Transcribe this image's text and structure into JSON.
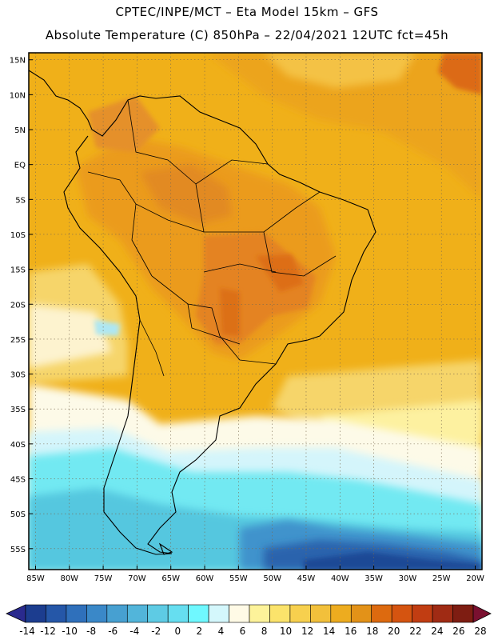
{
  "header": {
    "line1": "CPTEC/INPE/MCT –  Eta Model 15km – GFS",
    "line2": "Absolute Temperature (C) 850hPa – 22/04/2021 12UTC fct=45h"
  },
  "map": {
    "lon_range": [
      -86,
      -19
    ],
    "lat_range": [
      -58,
      16
    ],
    "lat_ticks": [
      {
        "value": 15,
        "label": "15N"
      },
      {
        "value": 10,
        "label": "10N"
      },
      {
        "value": 5,
        "label": "5N"
      },
      {
        "value": 0,
        "label": "EQ"
      },
      {
        "value": -5,
        "label": "5S"
      },
      {
        "value": -10,
        "label": "10S"
      },
      {
        "value": -15,
        "label": "15S"
      },
      {
        "value": -20,
        "label": "20S"
      },
      {
        "value": -25,
        "label": "25S"
      },
      {
        "value": -30,
        "label": "30S"
      },
      {
        "value": -35,
        "label": "35S"
      },
      {
        "value": -40,
        "label": "40S"
      },
      {
        "value": -45,
        "label": "45S"
      },
      {
        "value": -50,
        "label": "50S"
      },
      {
        "value": -55,
        "label": "55S"
      }
    ],
    "lon_ticks": [
      {
        "value": -85,
        "label": "85W"
      },
      {
        "value": -80,
        "label": "80W"
      },
      {
        "value": -75,
        "label": "75W"
      },
      {
        "value": -70,
        "label": "70W"
      },
      {
        "value": -65,
        "label": "65W"
      },
      {
        "value": -60,
        "label": "60W"
      },
      {
        "value": -55,
        "label": "55W"
      },
      {
        "value": -50,
        "label": "50W"
      },
      {
        "value": -45,
        "label": "45W"
      },
      {
        "value": -40,
        "label": "40W"
      },
      {
        "value": -35,
        "label": "35W"
      },
      {
        "value": -30,
        "label": "30W"
      },
      {
        "value": -25,
        "label": "25W"
      },
      {
        "value": -20,
        "label": "20W"
      }
    ]
  },
  "colorbar": {
    "labels": [
      "-14",
      "-12",
      "-10",
      "-8",
      "-6",
      "-4",
      "-2",
      "0",
      "2",
      "4",
      "6",
      "8",
      "10",
      "12",
      "14",
      "16",
      "18",
      "20",
      "22",
      "24",
      "26",
      "28"
    ],
    "colors": [
      "#1c3d8f",
      "#2557a8",
      "#2f70bb",
      "#3a88c8",
      "#47a0d1",
      "#52b5da",
      "#5ecbe4",
      "#66def0",
      "#6ff8ff",
      "#d4f7fc",
      "#fffae6",
      "#fdf39a",
      "#fbe36b",
      "#f7d04e",
      "#f2c03b",
      "#edac1f",
      "#e39218",
      "#dd6a0f",
      "#d55410",
      "#c13d12",
      "#a02b14",
      "#7e1d12"
    ],
    "under_color": "#2a2a8e",
    "over_color": "#7a1030"
  }
}
